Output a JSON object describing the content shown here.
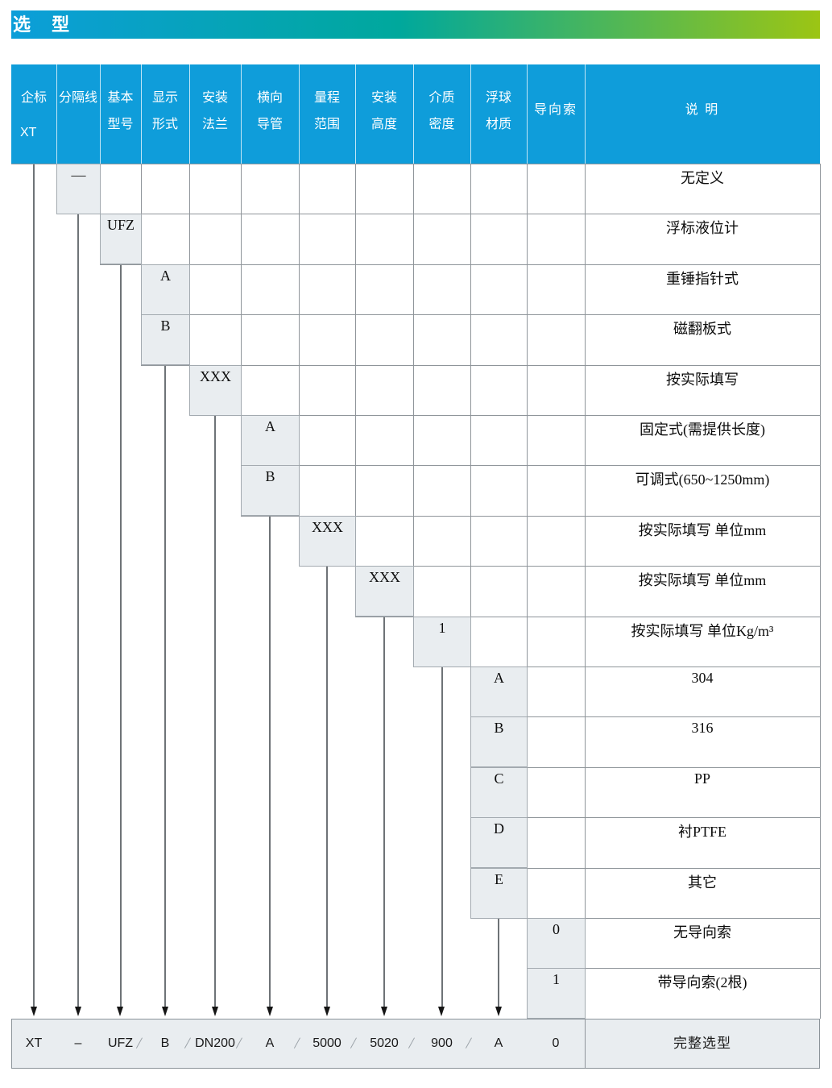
{
  "banner": {
    "title": "选 型",
    "gradient": [
      "#0c9ed9",
      "#00a89c",
      "#9cc514"
    ]
  },
  "table": {
    "header_bg": "#0f9dda",
    "header_text_color": "#ffffff",
    "option_cell_bg": "#e9edf0",
    "grid_color": "#8f959a",
    "arrow_color": "#6e7377",
    "arrowhead_color": "#151515",
    "columns": [
      {
        "key": "enterprise-standard",
        "label": "企标",
        "code": "XT"
      },
      {
        "key": "separator",
        "label": "分隔线"
      },
      {
        "key": "basic-model",
        "label": "基本型号"
      },
      {
        "key": "display-form",
        "label": "显示形式"
      },
      {
        "key": "mounting-flange",
        "label": "安装法兰"
      },
      {
        "key": "horizontal-conduit",
        "label": "横向导管"
      },
      {
        "key": "measuring-range",
        "label": "量程范围"
      },
      {
        "key": "mounting-height",
        "label": "安装高度"
      },
      {
        "key": "medium-density",
        "label": "介质密度"
      },
      {
        "key": "float-material",
        "label": "浮球材质"
      },
      {
        "key": "guide-cable",
        "label": "导向索",
        "center": true
      },
      {
        "key": "description",
        "label": "说 明",
        "center": true
      }
    ],
    "rows": [
      {
        "column": 1,
        "code": "—",
        "description": "无定义"
      },
      {
        "column": 2,
        "code": "UFZ",
        "description": "浮标液位计"
      },
      {
        "column": 3,
        "code": "A",
        "description": "重锤指针式"
      },
      {
        "column": 3,
        "code": "B",
        "description": "磁翻板式"
      },
      {
        "column": 4,
        "code": "XXX",
        "description": "按实际填写"
      },
      {
        "column": 5,
        "code": "A",
        "description": "固定式(需提供长度)"
      },
      {
        "column": 5,
        "code": "B",
        "description": "可调式(650~1250mm)"
      },
      {
        "column": 6,
        "code": "XXX",
        "description": "按实际填写 单位mm"
      },
      {
        "column": 7,
        "code": "XXX",
        "description": "按实际填写 单位mm"
      },
      {
        "column": 8,
        "code": "1",
        "description": "按实际填写 单位Kg/m³"
      },
      {
        "column": 9,
        "code": "A",
        "description": "304"
      },
      {
        "column": 9,
        "code": "B",
        "description": "316"
      },
      {
        "column": 9,
        "code": "C",
        "description": "PP"
      },
      {
        "column": 9,
        "code": "D",
        "description": "衬PTFE"
      },
      {
        "column": 9,
        "code": "E",
        "description": "其它"
      },
      {
        "column": 10,
        "code": "0",
        "description": "无导向索"
      },
      {
        "column": 10,
        "code": "1",
        "description": "带导向索(2根)"
      }
    ],
    "result_row": {
      "values": [
        "XT",
        "–",
        "UFZ",
        "B",
        "DN200",
        "A",
        "5000",
        "5020",
        "900",
        "A",
        "0"
      ],
      "separator": "/",
      "separators_after": [
        2,
        3,
        4,
        5,
        6,
        7,
        8
      ],
      "description": "完整选型"
    }
  }
}
